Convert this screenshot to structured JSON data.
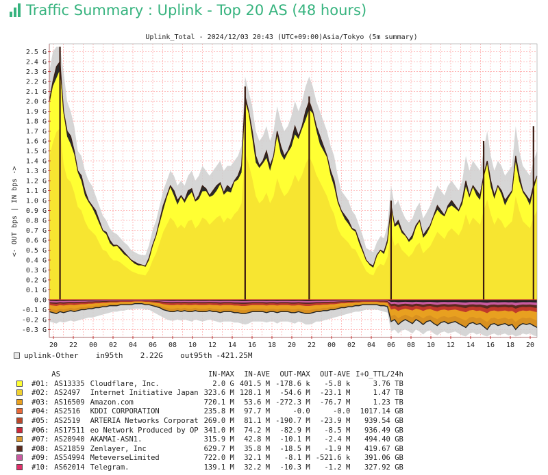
{
  "page": {
    "title": "Traffic Summary : Uplink - Top 20 AS (48 hours)"
  },
  "chart_data": {
    "type": "area",
    "title": "Uplink_Total - 2024/12/03 20:43 (UTC+09:00)Asia/Tokyo (5m summary)",
    "ylabel": "<- OUT bps | IN bps ->",
    "x_ticks": [
      "20",
      "22",
      "00",
      "02",
      "04",
      "06",
      "08",
      "10",
      "12",
      "14",
      "16",
      "18",
      "20",
      "22",
      "00",
      "02",
      "04",
      "06",
      "08",
      "10",
      "12",
      "14",
      "16",
      "18",
      "20"
    ],
    "y_tick_values": [
      2.5,
      2.4,
      2.3,
      2.2,
      2.1,
      2.0,
      1.9,
      1.8,
      1.7,
      1.6,
      1.5,
      1.4,
      1.3,
      1.2,
      1.1,
      1.0,
      0.9,
      0.8,
      0.7,
      0.6,
      0.5,
      0.4,
      0.3,
      0.2,
      0.1,
      0.0,
      -0.1,
      -0.2,
      -0.3
    ],
    "y_tick_labels": [
      "2.5 G",
      "2.4 G",
      "2.3 G",
      "2.2 G",
      "2.1 G",
      "2.0 G",
      "1.9 G",
      "1.8 G",
      "1.7 G",
      "1.6 G",
      "1.5 G",
      "1.4 G",
      "1.3 G",
      "1.2 G",
      "1.1 G",
      "1.0 G",
      "0.9 G",
      "0.8 G",
      "0.7 G",
      "0.6 G",
      "0.5 G",
      "0.4 G",
      "0.3 G",
      "0.2 G",
      "0.1 G",
      "0.0",
      "-0.1 G",
      "-0.2 G",
      "-0.3 G"
    ],
    "ylim": [
      -0.38,
      2.58
    ],
    "grid": true,
    "in_total_gbps": [
      2.0,
      2.2,
      2.35,
      2.4,
      1.9,
      1.7,
      1.65,
      1.5,
      1.3,
      1.25,
      1.1,
      1.0,
      0.95,
      0.9,
      0.8,
      0.7,
      0.68,
      0.6,
      0.55,
      0.55,
      0.52,
      0.48,
      0.44,
      0.4,
      0.38,
      0.36,
      0.35,
      0.34,
      0.42,
      0.55,
      0.65,
      0.8,
      0.95,
      1.05,
      1.15,
      1.1,
      1.0,
      1.05,
      1.0,
      1.1,
      1.12,
      1.0,
      1.05,
      1.15,
      1.12,
      1.05,
      1.1,
      1.15,
      1.18,
      1.08,
      1.15,
      1.12,
      1.2,
      1.25,
      1.35,
      2.05,
      1.9,
      1.7,
      1.45,
      1.35,
      1.4,
      1.5,
      1.35,
      1.45,
      1.7,
      1.55,
      1.45,
      1.5,
      1.6,
      1.75,
      1.65,
      1.75,
      1.9,
      2.0,
      1.9,
      1.75,
      1.65,
      1.55,
      1.45,
      1.3,
      1.2,
      1.0,
      0.9,
      0.85,
      0.8,
      0.72,
      0.7,
      0.6,
      0.5,
      0.4,
      0.36,
      0.34,
      0.45,
      0.5,
      0.48,
      0.6,
      0.95,
      0.75,
      0.8,
      0.7,
      0.65,
      0.6,
      0.65,
      0.75,
      0.8,
      0.65,
      0.7,
      0.75,
      0.85,
      0.95,
      0.9,
      0.85,
      0.95,
      1.0,
      0.95,
      0.9,
      1.0,
      1.2,
      1.05,
      1.15,
      1.1,
      1.05,
      1.25,
      1.4,
      1.2,
      1.05,
      1.15,
      1.1,
      1.0,
      1.05,
      1.1,
      1.45,
      1.25,
      1.1,
      1.05,
      1.0,
      1.15,
      1.25
    ],
    "in_max_gbps": [
      2.3,
      2.5,
      2.55,
      2.55,
      2.3,
      2.0,
      1.9,
      1.75,
      1.5,
      1.45,
      1.3,
      1.2,
      1.15,
      1.05,
      0.95,
      0.85,
      0.8,
      0.72,
      0.68,
      0.66,
      0.62,
      0.58,
      0.55,
      0.5,
      0.48,
      0.46,
      0.45,
      0.45,
      0.55,
      0.7,
      0.8,
      0.95,
      1.1,
      1.2,
      1.3,
      1.25,
      1.15,
      1.2,
      1.15,
      1.25,
      1.3,
      1.2,
      1.25,
      1.35,
      1.3,
      1.25,
      1.3,
      1.35,
      1.4,
      1.3,
      1.35,
      1.35,
      1.4,
      1.45,
      1.55,
      2.25,
      2.1,
      1.95,
      1.7,
      1.6,
      1.65,
      1.75,
      1.6,
      1.7,
      1.95,
      1.8,
      1.7,
      1.75,
      1.85,
      2.0,
      1.9,
      2.0,
      2.15,
      2.25,
      2.15,
      2.0,
      1.9,
      1.8,
      1.7,
      1.55,
      1.45,
      1.25,
      1.1,
      1.05,
      1.0,
      0.9,
      0.85,
      0.75,
      0.65,
      0.52,
      0.5,
      0.48,
      0.58,
      0.64,
      0.62,
      0.75,
      1.15,
      0.95,
      1.0,
      0.9,
      0.82,
      0.78,
      0.82,
      0.92,
      0.98,
      0.82,
      0.88,
      0.95,
      1.05,
      1.15,
      1.1,
      1.05,
      1.15,
      1.2,
      1.15,
      1.1,
      1.2,
      1.45,
      1.3,
      1.4,
      1.35,
      1.3,
      1.5,
      1.7,
      1.45,
      1.3,
      1.4,
      1.35,
      1.25,
      1.3,
      1.35,
      1.75,
      1.5,
      1.35,
      1.3,
      1.25,
      1.4,
      1.5
    ],
    "out_total_gbps": [
      -0.12,
      -0.13,
      -0.14,
      -0.12,
      -0.13,
      -0.12,
      -0.11,
      -0.12,
      -0.11,
      -0.1,
      -0.1,
      -0.09,
      -0.09,
      -0.08,
      -0.08,
      -0.07,
      -0.07,
      -0.06,
      -0.06,
      -0.06,
      -0.05,
      -0.05,
      -0.05,
      -0.05,
      -0.04,
      -0.04,
      -0.04,
      -0.05,
      -0.05,
      -0.06,
      -0.07,
      -0.08,
      -0.1,
      -0.11,
      -0.12,
      -0.12,
      -0.11,
      -0.12,
      -0.11,
      -0.12,
      -0.12,
      -0.11,
      -0.12,
      -0.12,
      -0.12,
      -0.11,
      -0.12,
      -0.12,
      -0.13,
      -0.12,
      -0.12,
      -0.12,
      -0.13,
      -0.13,
      -0.14,
      -0.14,
      -0.13,
      -0.12,
      -0.12,
      -0.12,
      -0.12,
      -0.13,
      -0.12,
      -0.12,
      -0.13,
      -0.12,
      -0.12,
      -0.12,
      -0.13,
      -0.13,
      -0.12,
      -0.13,
      -0.14,
      -0.14,
      -0.13,
      -0.12,
      -0.12,
      -0.11,
      -0.11,
      -0.1,
      -0.1,
      -0.09,
      -0.08,
      -0.08,
      -0.07,
      -0.07,
      -0.06,
      -0.06,
      -0.05,
      -0.05,
      -0.05,
      -0.05,
      -0.05,
      -0.06,
      -0.06,
      -0.07,
      -0.22,
      -0.2,
      -0.25,
      -0.22,
      -0.2,
      -0.22,
      -0.24,
      -0.2,
      -0.22,
      -0.25,
      -0.22,
      -0.21,
      -0.24,
      -0.26,
      -0.23,
      -0.22,
      -0.24,
      -0.23,
      -0.22,
      -0.24,
      -0.26,
      -0.28,
      -0.24,
      -0.23,
      -0.25,
      -0.24,
      -0.27,
      -0.3,
      -0.25,
      -0.24,
      -0.26,
      -0.25,
      -0.24,
      -0.26,
      -0.25,
      -0.3,
      -0.26,
      -0.24,
      -0.25,
      -0.24,
      -0.26,
      -0.28
    ],
    "out_min_gbps": [
      -0.22,
      -0.23,
      -0.24,
      -0.22,
      -0.23,
      -0.22,
      -0.21,
      -0.22,
      -0.21,
      -0.2,
      -0.19,
      -0.18,
      -0.18,
      -0.17,
      -0.16,
      -0.15,
      -0.14,
      -0.13,
      -0.12,
      -0.12,
      -0.11,
      -0.11,
      -0.1,
      -0.1,
      -0.09,
      -0.09,
      -0.09,
      -0.1,
      -0.1,
      -0.12,
      -0.14,
      -0.16,
      -0.18,
      -0.2,
      -0.21,
      -0.21,
      -0.2,
      -0.21,
      -0.2,
      -0.21,
      -0.22,
      -0.2,
      -0.21,
      -0.22,
      -0.21,
      -0.2,
      -0.21,
      -0.22,
      -0.23,
      -0.22,
      -0.22,
      -0.22,
      -0.23,
      -0.23,
      -0.24,
      -0.25,
      -0.24,
      -0.22,
      -0.22,
      -0.22,
      -0.22,
      -0.23,
      -0.22,
      -0.22,
      -0.24,
      -0.22,
      -0.22,
      -0.22,
      -0.23,
      -0.24,
      -0.22,
      -0.23,
      -0.25,
      -0.25,
      -0.24,
      -0.22,
      -0.22,
      -0.21,
      -0.2,
      -0.19,
      -0.18,
      -0.17,
      -0.16,
      -0.15,
      -0.14,
      -0.13,
      -0.12,
      -0.12,
      -0.11,
      -0.1,
      -0.1,
      -0.1,
      -0.1,
      -0.11,
      -0.12,
      -0.13,
      -0.32,
      -0.3,
      -0.34,
      -0.31,
      -0.3,
      -0.32,
      -0.34,
      -0.3,
      -0.32,
      -0.35,
      -0.32,
      -0.31,
      -0.34,
      -0.36,
      -0.33,
      -0.32,
      -0.34,
      -0.33,
      -0.32,
      -0.34,
      -0.36,
      -0.37,
      -0.34,
      -0.33,
      -0.35,
      -0.34,
      -0.36,
      -0.37,
      -0.35,
      -0.34,
      -0.36,
      -0.35,
      -0.34,
      -0.36,
      -0.35,
      -0.37,
      -0.36,
      -0.34,
      -0.35,
      -0.34,
      -0.36,
      -0.37
    ],
    "spikes": [
      {
        "x_index": 3,
        "value": 2.55
      },
      {
        "x_index": 55,
        "value": 2.15
      },
      {
        "x_index": 73,
        "value": 2.05
      },
      {
        "x_index": 96,
        "value": 1.0
      },
      {
        "x_index": 122,
        "value": 1.6
      },
      {
        "x_index": 136,
        "value": 1.75
      }
    ]
  },
  "legend_other": {
    "label": "uplink-Other",
    "in95_label": "in95th",
    "in95_value": "2.22G",
    "out95_label": "out95th",
    "out95_value": "-421.25M",
    "color": "#e8e8e8"
  },
  "as_table": {
    "headers": {
      "as": "AS",
      "in_max": "IN-MAX",
      "in_ave": "IN-AVE",
      "out_max": "OUT-MAX",
      "out_ave": "OUT-AVE",
      "ttl": "I+O_TTL/24h"
    },
    "rows": [
      {
        "rank": "#01:",
        "asn": "AS13335",
        "name": "Cloudflare, Inc.",
        "in_max": "2.0 G",
        "in_ave": "401.5 M",
        "out_max": "-178.6 k",
        "out_ave": "-5.8 k",
        "ttl": "3.76 TB",
        "color": "#ffff33"
      },
      {
        "rank": "#02:",
        "asn": "AS2497",
        "name": "Internet Initiative Japan",
        "in_max": "323.6 M",
        "in_ave": "128.1 M",
        "out_max": "-54.6 M",
        "out_ave": "-23.1 M",
        "ttl": "1.47 TB",
        "color": "#f0d030"
      },
      {
        "rank": "#03:",
        "asn": "AS16509",
        "name": "Amazon.com",
        "in_max": "720.1 M",
        "in_ave": "53.6 M",
        "out_max": "-272.3 M",
        "out_ave": "-76.7 M",
        "ttl": "1.23 TB",
        "color": "#e8a020"
      },
      {
        "rank": "#04:",
        "asn": "AS2516",
        "name": "KDDI CORPORATION",
        "in_max": "235.8 M",
        "in_ave": "97.7 M",
        "out_max": "-0.0",
        "out_ave": "-0.0",
        "ttl": "1017.14 GB",
        "color": "#e86a3a"
      },
      {
        "rank": "#05:",
        "asn": "AS2519",
        "name": "ARTERIA Networks Corporat",
        "in_max": "269.0 M",
        "in_ave": "81.1 M",
        "out_max": "-190.7 M",
        "out_ave": "-23.9 M",
        "ttl": "939.54 GB",
        "color": "#b8482c"
      },
      {
        "rank": "#06:",
        "asn": "AS17511",
        "name": "eo Network Produced by OP",
        "in_max": "341.0 M",
        "in_ave": "74.2 M",
        "out_max": "-82.9 M",
        "out_ave": "-8.5 M",
        "ttl": "936.49 GB",
        "color": "#cc2a3a"
      },
      {
        "rank": "#07:",
        "asn": "AS20940",
        "name": "AKAMAI-ASN1.",
        "in_max": "315.9 M",
        "in_ave": "42.8 M",
        "out_max": "-10.1 M",
        "out_ave": "-2.4 M",
        "ttl": "494.40 GB",
        "color": "#d89830"
      },
      {
        "rank": "#08:",
        "asn": "AS21859",
        "name": "Zenlayer, Inc",
        "in_max": "629.7 M",
        "in_ave": "35.8 M",
        "out_max": "-18.5 M",
        "out_ave": "-1.9 M",
        "ttl": "419.67 GB",
        "color": "#5c2a1e"
      },
      {
        "rank": "#09:",
        "asn": "AS54994",
        "name": "MeteverseLimited",
        "in_max": "722.0 M",
        "in_ave": "32.1 M",
        "out_max": "-8.1 M",
        "out_ave": "-521.6 k",
        "ttl": "391.06 GB",
        "color": "#c85aa0"
      },
      {
        "rank": "#10:",
        "asn": "AS62014",
        "name": "Telegram.",
        "in_max": "139.1 M",
        "in_ave": "32.2 M",
        "out_max": "-10.3 M",
        "out_ave": "-1.2 M",
        "ttl": "327.92 GB",
        "color": "#e0306a"
      }
    ]
  },
  "colors": {
    "brand": "#36b37e",
    "grid": "#ffaaaa",
    "axis": "#cc3333",
    "max_band": "#cfcfcf",
    "band_layers": [
      "#ffff33",
      "#f5e642",
      "#f0d030",
      "#e8a020",
      "#e86a3a",
      "#cc2a3a",
      "#b8482c",
      "#c85aa0",
      "#5c2a1e",
      "#2d5fa8",
      "#2a2a2a"
    ],
    "out_layers": [
      "#d89020",
      "#e8a020",
      "#c0392b",
      "#5c2a1e",
      "#c85aa0",
      "#222222"
    ]
  }
}
